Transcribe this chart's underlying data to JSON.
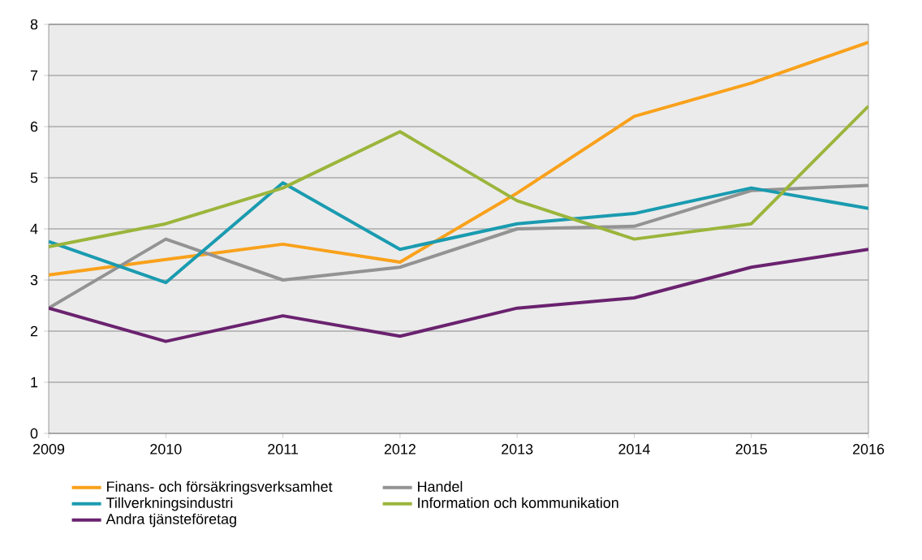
{
  "chart_data": {
    "type": "line",
    "x": [
      2009,
      2010,
      2011,
      2012,
      2013,
      2014,
      2015,
      2016
    ],
    "xlim": [
      2009,
      2016
    ],
    "xticks": [
      2009,
      2010,
      2011,
      2012,
      2013,
      2014,
      2015,
      2016
    ],
    "ylim": [
      0,
      8
    ],
    "yticks": [
      0,
      1,
      2,
      3,
      4,
      5,
      6,
      7,
      8
    ],
    "grid": "y",
    "legend": "bottom",
    "marker": "none",
    "line_style": "solid",
    "series": [
      {
        "name": "Finans- och försäkringsverksamhet",
        "color": "#f9a11b",
        "values": [
          3.1,
          3.4,
          3.7,
          3.35,
          4.7,
          6.2,
          6.85,
          7.65
        ]
      },
      {
        "name": "Handel",
        "color": "#939393",
        "values": [
          2.45,
          3.8,
          3.0,
          3.25,
          4.0,
          4.05,
          4.75,
          4.85
        ]
      },
      {
        "name": "Tillverkningsindustri",
        "color": "#1a9bb0",
        "values": [
          3.75,
          2.95,
          4.9,
          3.6,
          4.1,
          4.3,
          4.8,
          4.4
        ]
      },
      {
        "name": "Information och kommunikation",
        "color": "#9bb53b",
        "values": [
          3.65,
          4.1,
          4.8,
          5.9,
          4.55,
          3.8,
          4.1,
          6.4
        ]
      },
      {
        "name": "Andra tjänsteföretag",
        "color": "#6a226f",
        "values": [
          2.45,
          1.8,
          2.3,
          1.9,
          2.45,
          2.65,
          3.25,
          3.6
        ]
      }
    ]
  }
}
